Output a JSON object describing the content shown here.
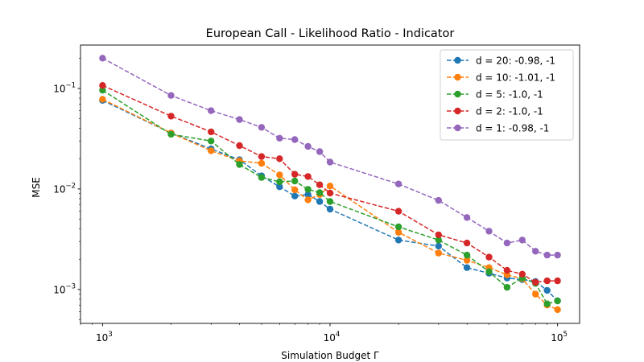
{
  "chart_data": {
    "type": "line",
    "title": "European Call - Likelihood Ratio - Indicator",
    "xlabel": "Simulation Budget Γ",
    "ylabel": "MSE",
    "xscale": "log",
    "yscale": "log",
    "xlim": [
      800,
      125000
    ],
    "ylim": [
      0.00046,
      0.27
    ],
    "x_ticks": [
      {
        "value": 1000,
        "base": "10",
        "exp": "3"
      },
      {
        "value": 10000,
        "base": "10",
        "exp": "4"
      },
      {
        "value": 100000,
        "base": "10",
        "exp": "5"
      }
    ],
    "y_ticks": [
      {
        "value": 0.001,
        "base": "10",
        "exp": "−3"
      },
      {
        "value": 0.01,
        "base": "10",
        "exp": "−2"
      },
      {
        "value": 0.1,
        "base": "10",
        "exp": "−1"
      }
    ],
    "grid": false,
    "legend_position": "top-right",
    "line_style": "dashed",
    "marker": "circle",
    "x": [
      1000,
      2000,
      3000,
      4000,
      5000,
      6000,
      7000,
      8000,
      9000,
      10000,
      20000,
      30000,
      40000,
      50000,
      60000,
      70000,
      80000,
      90000,
      100000
    ],
    "series": [
      {
        "name": "d = 20: -0.98, -1",
        "color": "#1f77b4",
        "values": [
          0.076,
          0.036,
          0.025,
          0.0195,
          0.0135,
          0.0105,
          0.0085,
          0.0088,
          0.0075,
          0.0063,
          0.0031,
          0.0027,
          0.00165,
          0.00145,
          0.0013,
          0.00125,
          0.0012,
          0.00098,
          0.00077
        ]
      },
      {
        "name": "d = 10: -1.01, -1",
        "color": "#ff7f0e",
        "values": [
          0.078,
          0.036,
          0.024,
          0.019,
          0.018,
          0.0138,
          0.0098,
          0.0078,
          0.0088,
          0.0107,
          0.0037,
          0.0023,
          0.00195,
          0.00165,
          0.0014,
          0.00128,
          0.0009,
          0.0007,
          0.00063
        ]
      },
      {
        "name": "d = 5: -1.0, -1",
        "color": "#2ca02c",
        "values": [
          0.096,
          0.035,
          0.03,
          0.0175,
          0.013,
          0.0118,
          0.012,
          0.0099,
          0.0092,
          0.0075,
          0.0042,
          0.0031,
          0.0022,
          0.0015,
          0.00105,
          0.0013,
          0.00115,
          0.00072,
          0.00077
        ]
      },
      {
        "name": "d = 2: -1.0, -1",
        "color": "#d62728",
        "values": [
          0.107,
          0.053,
          0.037,
          0.027,
          0.021,
          0.02,
          0.014,
          0.0133,
          0.011,
          0.0091,
          0.006,
          0.0035,
          0.0029,
          0.0021,
          0.00155,
          0.00142,
          0.00118,
          0.00122,
          0.00122
        ]
      },
      {
        "name": "d = 1: -0.98, -1",
        "color": "#9467bd",
        "values": [
          0.2,
          0.085,
          0.06,
          0.049,
          0.041,
          0.032,
          0.031,
          0.0265,
          0.0235,
          0.0185,
          0.0112,
          0.0077,
          0.0052,
          0.0038,
          0.0029,
          0.0031,
          0.0024,
          0.0022,
          0.0022
        ]
      }
    ]
  }
}
